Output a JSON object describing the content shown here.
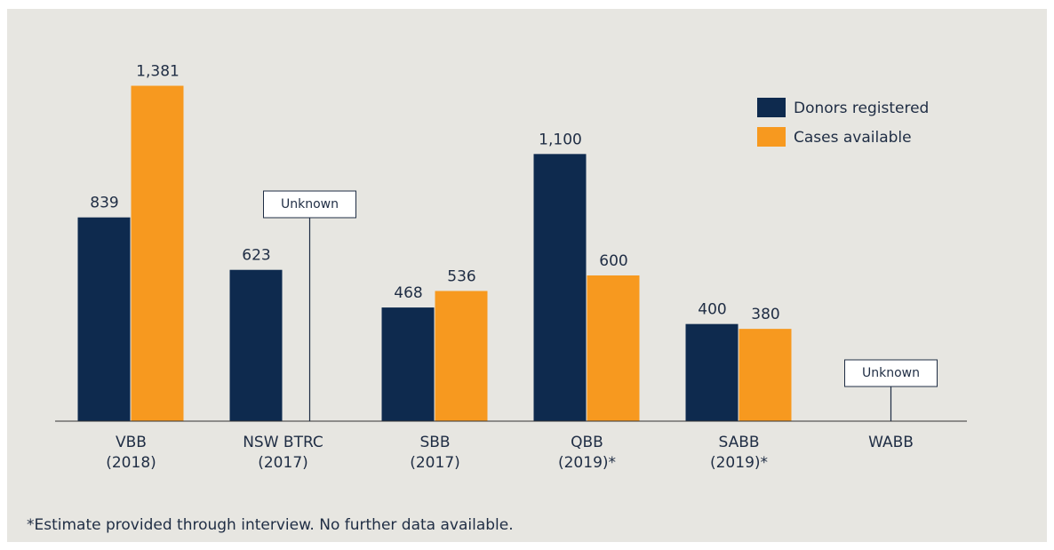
{
  "chart_data": {
    "type": "bar",
    "categories": [
      [
        "VBB",
        "(2018)"
      ],
      [
        "NSW BTRC",
        "(2017)"
      ],
      [
        "SBB",
        "(2017)"
      ],
      [
        "QBB",
        "(2019)*"
      ],
      [
        "SABB",
        "(2019)*"
      ],
      [
        "WABB"
      ]
    ],
    "series": [
      {
        "name": "Donors registered",
        "color": "#0e2a4e",
        "values": [
          839,
          623,
          468,
          1100,
          400,
          null
        ],
        "value_labels": [
          "839",
          "623",
          "468",
          "1,100",
          "400",
          null
        ]
      },
      {
        "name": "Cases available",
        "color": "#f7991f",
        "values": [
          1381,
          null,
          536,
          600,
          380,
          null
        ],
        "value_labels": [
          "1,381",
          null,
          "536",
          "600",
          "380",
          null
        ]
      }
    ],
    "annotations": [
      {
        "text": "Unknown",
        "category": 1,
        "series": 1
      },
      {
        "text": "Unknown",
        "category": 5
      }
    ],
    "ylim": [
      0,
      1500
    ],
    "legend": "top-right",
    "footnote": "*Estimate provided through interview. No further data available."
  }
}
